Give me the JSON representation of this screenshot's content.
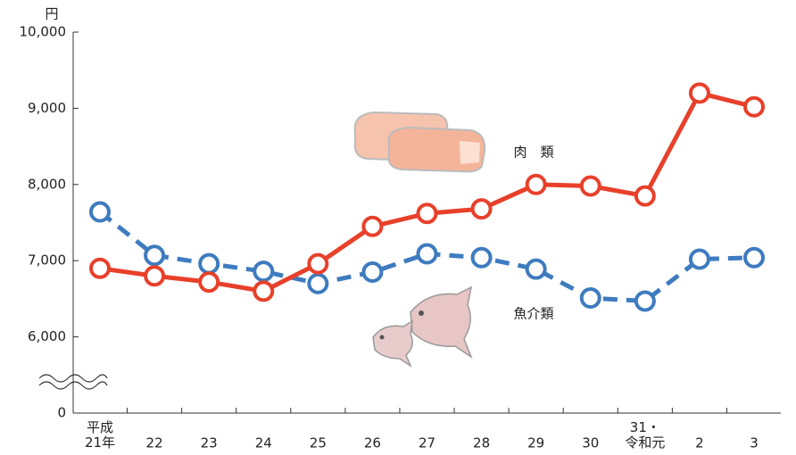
{
  "chart_data": {
    "type": "line",
    "y_unit": "円",
    "categories": [
      "平成\n21年",
      "22",
      "23",
      "24",
      "25",
      "26",
      "27",
      "28",
      "29",
      "30",
      "31・\n令和元",
      "2",
      "3"
    ],
    "series": [
      {
        "name": "肉　類",
        "color": "#e8402a",
        "dashed": false,
        "values": [
          6900,
          6800,
          6720,
          6600,
          6960,
          7450,
          7620,
          7680,
          8000,
          7980,
          7850,
          9200,
          9020
        ]
      },
      {
        "name": "魚介類",
        "color": "#3e7bbf",
        "dashed": true,
        "values": [
          7640,
          7070,
          6960,
          6860,
          6700,
          6850,
          7090,
          7040,
          6890,
          6510,
          6470,
          7020,
          7040
        ]
      }
    ],
    "ylim": [
      0,
      10000
    ],
    "axis_break": [
      0,
      5000
    ],
    "yticks": [
      0,
      {
        "value": 6000,
        "label": "6,000"
      },
      {
        "value": 7000,
        "label": "7,000"
      },
      {
        "value": 8000,
        "label": "8,000"
      },
      {
        "value": 9000,
        "label": "9,000"
      },
      {
        "value": 10000,
        "label": "10,000"
      }
    ],
    "grid": false
  }
}
